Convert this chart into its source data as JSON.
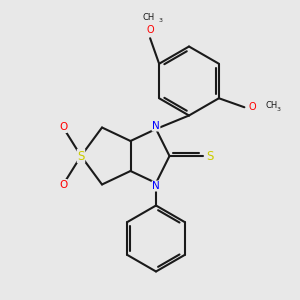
{
  "bg_color": "#e8e8e8",
  "bond_color": "#1a1a1a",
  "N_color": "#0000ff",
  "O_color": "#ff0000",
  "S_color": "#cccc00",
  "lw": 1.5,
  "fs": 6.5,
  "xlim": [
    0,
    10
  ],
  "ylim": [
    0,
    10
  ]
}
